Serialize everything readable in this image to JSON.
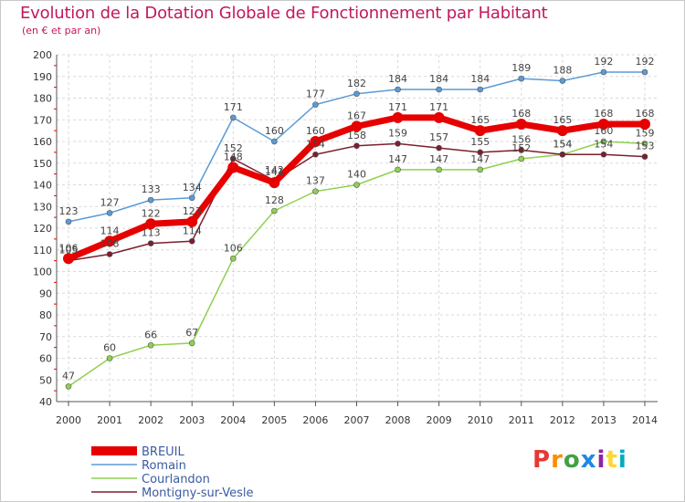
{
  "header": {
    "title": "Evolution de la Dotation Globale de Fonctionnement par Habitant",
    "subtitle": "(en € et par an)"
  },
  "logo": {
    "text": "Proxiti",
    "colors": [
      "#e53935",
      "#fb8c00",
      "#43a047",
      "#1e88e5",
      "#8e24aa",
      "#fdd835",
      "#00acc1"
    ]
  },
  "chart_data": {
    "type": "line",
    "title": "Evolution de la Dotation Globale de Fonctionnement par Habitant",
    "subtitle": "(en € et par an)",
    "xlabel": "",
    "ylabel": "",
    "x": [
      "2000",
      "2001",
      "2002",
      "2003",
      "2004",
      "2005",
      "2006",
      "2007",
      "2008",
      "2009",
      "2010",
      "2011",
      "2012",
      "2013",
      "2014"
    ],
    "ylim": [
      40,
      200
    ],
    "yticks": [
      40,
      50,
      60,
      70,
      80,
      90,
      100,
      110,
      120,
      130,
      140,
      150,
      160,
      170,
      180,
      190,
      200
    ],
    "grid": true,
    "legend_position": "bottom-left",
    "series": [
      {
        "name": "BREUIL",
        "color": "#e60000",
        "values": [
          106,
          114,
          122,
          123,
          148,
          141,
          160,
          167,
          171,
          171,
          165,
          168,
          165,
          168,
          168
        ]
      },
      {
        "name": "Romain",
        "color": "#5b9bd5",
        "values": [
          123,
          127,
          133,
          134,
          171,
          160,
          177,
          182,
          184,
          184,
          184,
          189,
          188,
          192,
          192
        ]
      },
      {
        "name": "Courlandon",
        "color": "#8fd14f",
        "values": [
          47,
          60,
          66,
          67,
          106,
          128,
          137,
          140,
          147,
          147,
          147,
          152,
          154,
          160,
          159
        ]
      },
      {
        "name": "Montigny-sur-Vesle",
        "color": "#7b1f2e",
        "values": [
          105,
          108,
          113,
          114,
          152,
          142,
          154,
          158,
          159,
          157,
          155,
          156,
          154,
          154,
          153
        ]
      }
    ]
  }
}
